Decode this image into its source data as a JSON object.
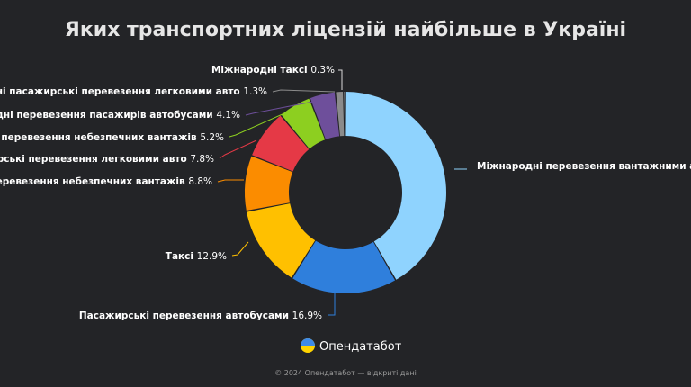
{
  "chart_data": {
    "type": "pie",
    "title": "Яких транспортних ліцензій найбільше в Україні",
    "unit": "%",
    "slices": [
      {
        "name": "Міжнародні перевезення вантажними авто",
        "value": 41.0,
        "color": "#8fd3fe"
      },
      {
        "name": "Пасажирські перевезення автобусами",
        "value": 16.9,
        "color": "#2f7fdc"
      },
      {
        "name": "Таксі",
        "value": 12.9,
        "color": "#ffc000"
      },
      {
        "name": "Перевезення небезпечних вантажів",
        "value": 8.8,
        "color": "#fb8c00"
      },
      {
        "name": "Пасажирські перевезення легковими авто",
        "value": 7.8,
        "color": "#e53946"
      },
      {
        "name": "Міжнародні перевезення небезпечних вантажів",
        "value": 5.2,
        "color": "#8dcf20"
      },
      {
        "name": "Міжнародні перевезення пасажирів автобусами",
        "value": 4.1,
        "color": "#6e4f9b"
      },
      {
        "name": "Міжнародні пасажирські перевезення легковими авто",
        "value": 1.3,
        "color": "#8b8b8b"
      },
      {
        "name": "Міжнародні таксі",
        "value": 0.3,
        "color": "#d9d9d9"
      }
    ]
  },
  "brand": {
    "name": "Опендатабот",
    "footer": "© 2024 Опендатабот — відкриті дані"
  }
}
